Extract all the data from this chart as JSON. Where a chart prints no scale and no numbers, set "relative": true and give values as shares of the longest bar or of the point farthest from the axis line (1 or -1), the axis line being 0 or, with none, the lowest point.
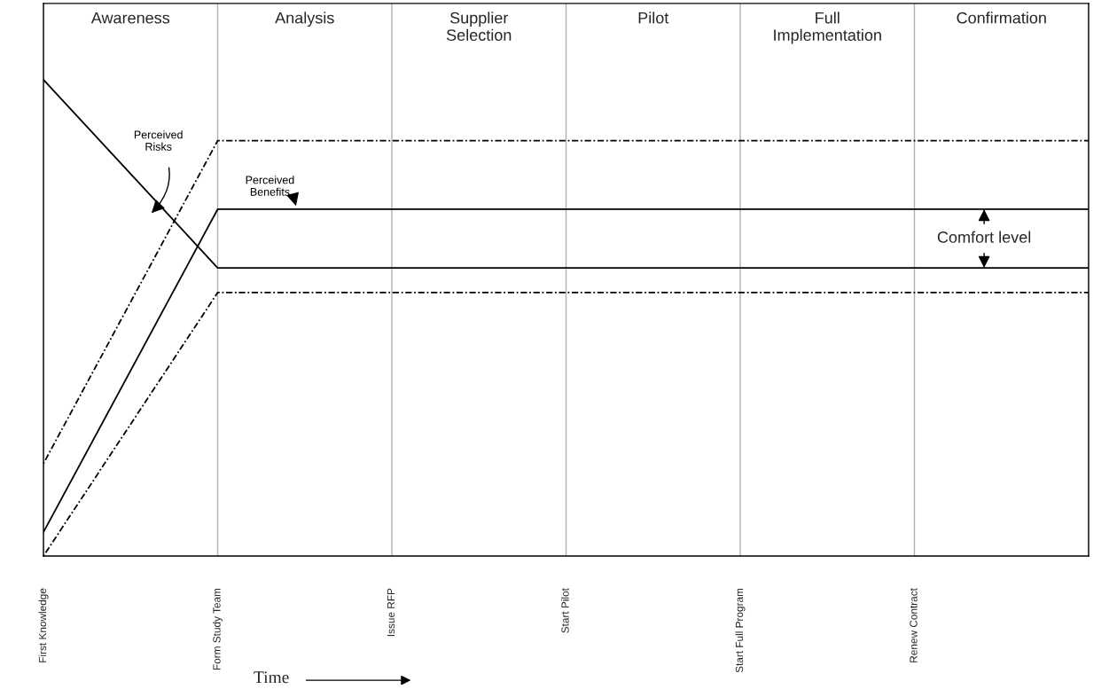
{
  "chart_data": {
    "type": "line",
    "relative": true,
    "xlabel": "Time",
    "categories": [
      "First Knowledge",
      "Form Study Team",
      "Issue RFP",
      "Start Pilot",
      "Start Full Program",
      "Renew Contract",
      null
    ],
    "grid": "x",
    "legend": false,
    "series": [
      {
        "name": "Perceived Risks",
        "color": "#000000",
        "line_style": "solid",
        "values": [
          1,
          0.605,
          0.605,
          0.605,
          0.605,
          0.605,
          0.605
        ]
      },
      {
        "name": "Perceived Benefits",
        "color": "#000000",
        "line_style": "solid",
        "values": [
          0.05,
          0.728,
          0.728,
          0.728,
          0.728,
          0.728,
          0.728
        ]
      },
      {
        "color": "#000000",
        "line_style": "dotted",
        "values": [
          0.194,
          0.872,
          0.872,
          0.872,
          0.872,
          0.872,
          0.872
        ]
      },
      {
        "color": "#000000",
        "line_style": "dotted",
        "values": [
          0,
          0.553,
          0.553,
          0.553,
          0.553,
          0.553,
          0.553
        ]
      }
    ],
    "annotations": [
      "Awareness",
      "Analysis",
      "Supplier\nSelection",
      "Pilot",
      "Full\nImplementation",
      "Confirmation",
      "Comfort level"
    ]
  }
}
